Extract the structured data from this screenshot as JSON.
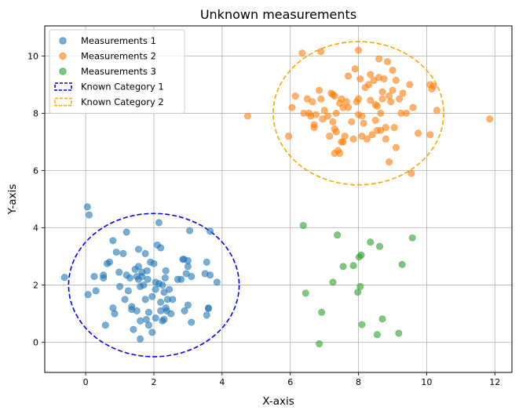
{
  "chart_data": {
    "type": "scatter",
    "title": "Unknown measurements",
    "xlabel": "X-axis",
    "ylabel": "Y-axis",
    "xlim": [
      -1.2,
      12.5
    ],
    "ylim": [
      -1.05,
      11.05
    ],
    "xticks": [
      0,
      2,
      4,
      6,
      8,
      10,
      12
    ],
    "yticks": [
      0,
      2,
      4,
      6,
      8,
      10
    ],
    "grid": true,
    "legend_position": "top-left",
    "series": [
      {
        "name": "Measurements 1",
        "color": "#1f77b4",
        "points": [
          [
            -0.62,
            2.27
          ],
          [
            0.05,
            4.73
          ],
          [
            0.1,
            4.45
          ],
          [
            0.07,
            1.67
          ],
          [
            0.25,
            2.3
          ],
          [
            0.3,
            1.8
          ],
          [
            0.52,
            2.25
          ],
          [
            0.52,
            2.35
          ],
          [
            0.58,
            0.6
          ],
          [
            0.63,
            2.75
          ],
          [
            0.7,
            2.8
          ],
          [
            0.8,
            3.55
          ],
          [
            0.8,
            1.2
          ],
          [
            0.85,
            1.0
          ],
          [
            0.9,
            3.15
          ],
          [
            0.98,
            2.45
          ],
          [
            1.0,
            1.95
          ],
          [
            1.1,
            3.1
          ],
          [
            1.15,
            1.5
          ],
          [
            1.2,
            3.85
          ],
          [
            1.2,
            2.35
          ],
          [
            1.25,
            1.8
          ],
          [
            1.3,
            2.25
          ],
          [
            1.35,
            1.25
          ],
          [
            1.35,
            1.15
          ],
          [
            1.4,
            0.45
          ],
          [
            1.45,
            2.55
          ],
          [
            1.5,
            2.3
          ],
          [
            1.5,
            1.1
          ],
          [
            1.55,
            3.25
          ],
          [
            1.55,
            2.65
          ],
          [
            1.55,
            2.2
          ],
          [
            1.6,
            1.95
          ],
          [
            1.6,
            0.75
          ],
          [
            1.6,
            0.12
          ],
          [
            1.65,
            2.3
          ],
          [
            1.65,
            2.45
          ],
          [
            1.7,
            2.0
          ],
          [
            1.75,
            3.1
          ],
          [
            1.75,
            1.5
          ],
          [
            1.78,
            0.8
          ],
          [
            1.8,
            2.5
          ],
          [
            1.82,
            2.2
          ],
          [
            1.85,
            1.05
          ],
          [
            1.85,
            0.6
          ],
          [
            1.9,
            2.8
          ],
          [
            1.95,
            1.6
          ],
          [
            1.95,
            0.35
          ],
          [
            2.0,
            2.75
          ],
          [
            2.05,
            2.1
          ],
          [
            2.05,
            1.85
          ],
          [
            2.05,
            0.85
          ],
          [
            2.1,
            3.4
          ],
          [
            2.15,
            4.18
          ],
          [
            2.15,
            2.05
          ],
          [
            2.2,
            3.3
          ],
          [
            2.2,
            1.4
          ],
          [
            2.2,
            1.1
          ],
          [
            2.25,
            2.0
          ],
          [
            2.25,
            0.75
          ],
          [
            2.3,
            1.75
          ],
          [
            2.3,
            0.8
          ],
          [
            2.33,
            2.25
          ],
          [
            2.35,
            2.5
          ],
          [
            2.35,
            1.2
          ],
          [
            2.38,
            1.1
          ],
          [
            2.4,
            1.5
          ],
          [
            2.45,
            1.85
          ],
          [
            2.5,
            1.0
          ],
          [
            2.55,
            1.5
          ],
          [
            2.7,
            2.2
          ],
          [
            2.8,
            2.2
          ],
          [
            2.85,
            2.9
          ],
          [
            2.88,
            2.9
          ],
          [
            2.9,
            1.1
          ],
          [
            2.95,
            2.4
          ],
          [
            3.0,
            2.85
          ],
          [
            3.0,
            2.65
          ],
          [
            3.0,
            1.3
          ],
          [
            3.05,
            3.9
          ],
          [
            3.1,
            2.3
          ],
          [
            3.1,
            0.7
          ],
          [
            3.5,
            2.4
          ],
          [
            3.55,
            2.8
          ],
          [
            3.55,
            0.95
          ],
          [
            3.6,
            1.2
          ],
          [
            3.6,
            1.18
          ],
          [
            3.65,
            3.88
          ],
          [
            3.65,
            2.35
          ],
          [
            3.85,
            2.1
          ]
        ]
      },
      {
        "name": "Measurements 2",
        "color": "#ff7f0e",
        "points": [
          [
            4.75,
            7.9
          ],
          [
            5.95,
            7.2
          ],
          [
            6.05,
            8.2
          ],
          [
            6.15,
            8.6
          ],
          [
            6.35,
            10.1
          ],
          [
            6.4,
            8.0
          ],
          [
            6.5,
            8.5
          ],
          [
            6.55,
            8.0
          ],
          [
            6.6,
            7.9
          ],
          [
            6.65,
            8.4
          ],
          [
            6.7,
            7.5
          ],
          [
            6.7,
            7.6
          ],
          [
            6.75,
            7.95
          ],
          [
            6.85,
            8.8
          ],
          [
            6.9,
            10.15
          ],
          [
            6.9,
            8.5
          ],
          [
            6.95,
            7.8
          ],
          [
            7.0,
            8.1
          ],
          [
            7.1,
            7.9
          ],
          [
            7.15,
            7.2
          ],
          [
            7.2,
            8.7
          ],
          [
            7.25,
            8.65
          ],
          [
            7.25,
            7.7
          ],
          [
            7.3,
            8.6
          ],
          [
            7.3,
            7.45
          ],
          [
            7.3,
            6.6
          ],
          [
            7.35,
            7.35
          ],
          [
            7.35,
            8.0
          ],
          [
            7.4,
            6.7
          ],
          [
            7.45,
            8.35
          ],
          [
            7.45,
            6.6
          ],
          [
            7.5,
            8.5
          ],
          [
            7.5,
            7.0
          ],
          [
            7.55,
            8.2
          ],
          [
            7.55,
            7.0
          ],
          [
            7.6,
            7.2
          ],
          [
            7.65,
            8.4
          ],
          [
            7.7,
            9.3
          ],
          [
            7.7,
            8.2
          ],
          [
            7.8,
            7.7
          ],
          [
            7.85,
            7.1
          ],
          [
            7.9,
            9.55
          ],
          [
            7.95,
            8.4
          ],
          [
            8.0,
            10.2
          ],
          [
            8.0,
            8.5
          ],
          [
            8.0,
            7.95
          ],
          [
            8.05,
            9.2
          ],
          [
            8.1,
            7.9
          ],
          [
            8.1,
            7.2
          ],
          [
            8.15,
            7.65
          ],
          [
            8.2,
            8.9
          ],
          [
            8.25,
            7.1
          ],
          [
            8.3,
            9.0
          ],
          [
            8.35,
            9.35
          ],
          [
            8.35,
            8.45
          ],
          [
            8.4,
            7.25
          ],
          [
            8.45,
            9.15
          ],
          [
            8.5,
            8.3
          ],
          [
            8.5,
            7.75
          ],
          [
            8.55,
            8.25
          ],
          [
            8.55,
            7.4
          ],
          [
            8.6,
            9.9
          ],
          [
            8.6,
            9.25
          ],
          [
            8.65,
            8.0
          ],
          [
            8.65,
            7.4
          ],
          [
            8.7,
            8.75
          ],
          [
            8.7,
            8.5
          ],
          [
            8.75,
            9.2
          ],
          [
            8.8,
            7.5
          ],
          [
            8.8,
            7.1
          ],
          [
            8.85,
            9.8
          ],
          [
            8.9,
            8.6
          ],
          [
            8.9,
            6.3
          ],
          [
            8.95,
            8.4
          ],
          [
            9.0,
            9.5
          ],
          [
            9.0,
            8.8
          ],
          [
            9.05,
            7.5
          ],
          [
            9.1,
            9.15
          ],
          [
            9.1,
            6.8
          ],
          [
            9.2,
            8.5
          ],
          [
            9.25,
            8.0
          ],
          [
            9.3,
            8.7
          ],
          [
            9.4,
            8.0
          ],
          [
            9.5,
            9.0
          ],
          [
            9.55,
            5.9
          ],
          [
            9.6,
            8.2
          ],
          [
            9.75,
            7.3
          ],
          [
            10.1,
            9.0
          ],
          [
            10.15,
            8.85
          ],
          [
            10.2,
            8.95
          ],
          [
            10.3,
            8.1
          ],
          [
            10.1,
            7.25
          ],
          [
            11.85,
            7.8
          ]
        ]
      },
      {
        "name": "Measurements 3",
        "color": "#2ca02c",
        "points": [
          [
            6.38,
            4.08
          ],
          [
            6.45,
            1.72
          ],
          [
            6.85,
            -0.05
          ],
          [
            6.92,
            1.05
          ],
          [
            7.25,
            2.1
          ],
          [
            7.38,
            3.75
          ],
          [
            7.55,
            2.65
          ],
          [
            7.85,
            2.68
          ],
          [
            7.98,
            1.75
          ],
          [
            8.02,
            2.98
          ],
          [
            8.05,
            1.95
          ],
          [
            8.08,
            3.05
          ],
          [
            8.1,
            0.62
          ],
          [
            8.35,
            3.5
          ],
          [
            8.55,
            0.27
          ],
          [
            8.62,
            3.35
          ],
          [
            8.7,
            0.82
          ],
          [
            9.18,
            0.32
          ],
          [
            9.28,
            2.72
          ],
          [
            9.58,
            3.65
          ]
        ]
      }
    ],
    "reference_shapes": [
      {
        "name": "Known Category 1",
        "shape": "ellipse",
        "style": "dashed",
        "color": "#0000ff",
        "center": [
          2,
          2
        ],
        "radius_x": 2.5,
        "radius_y": 2.5
      },
      {
        "name": "Known Category 2",
        "shape": "ellipse",
        "style": "dashed",
        "color": "#ffa500",
        "center": [
          8,
          8
        ],
        "radius_x": 2.5,
        "radius_y": 2.5
      }
    ]
  }
}
